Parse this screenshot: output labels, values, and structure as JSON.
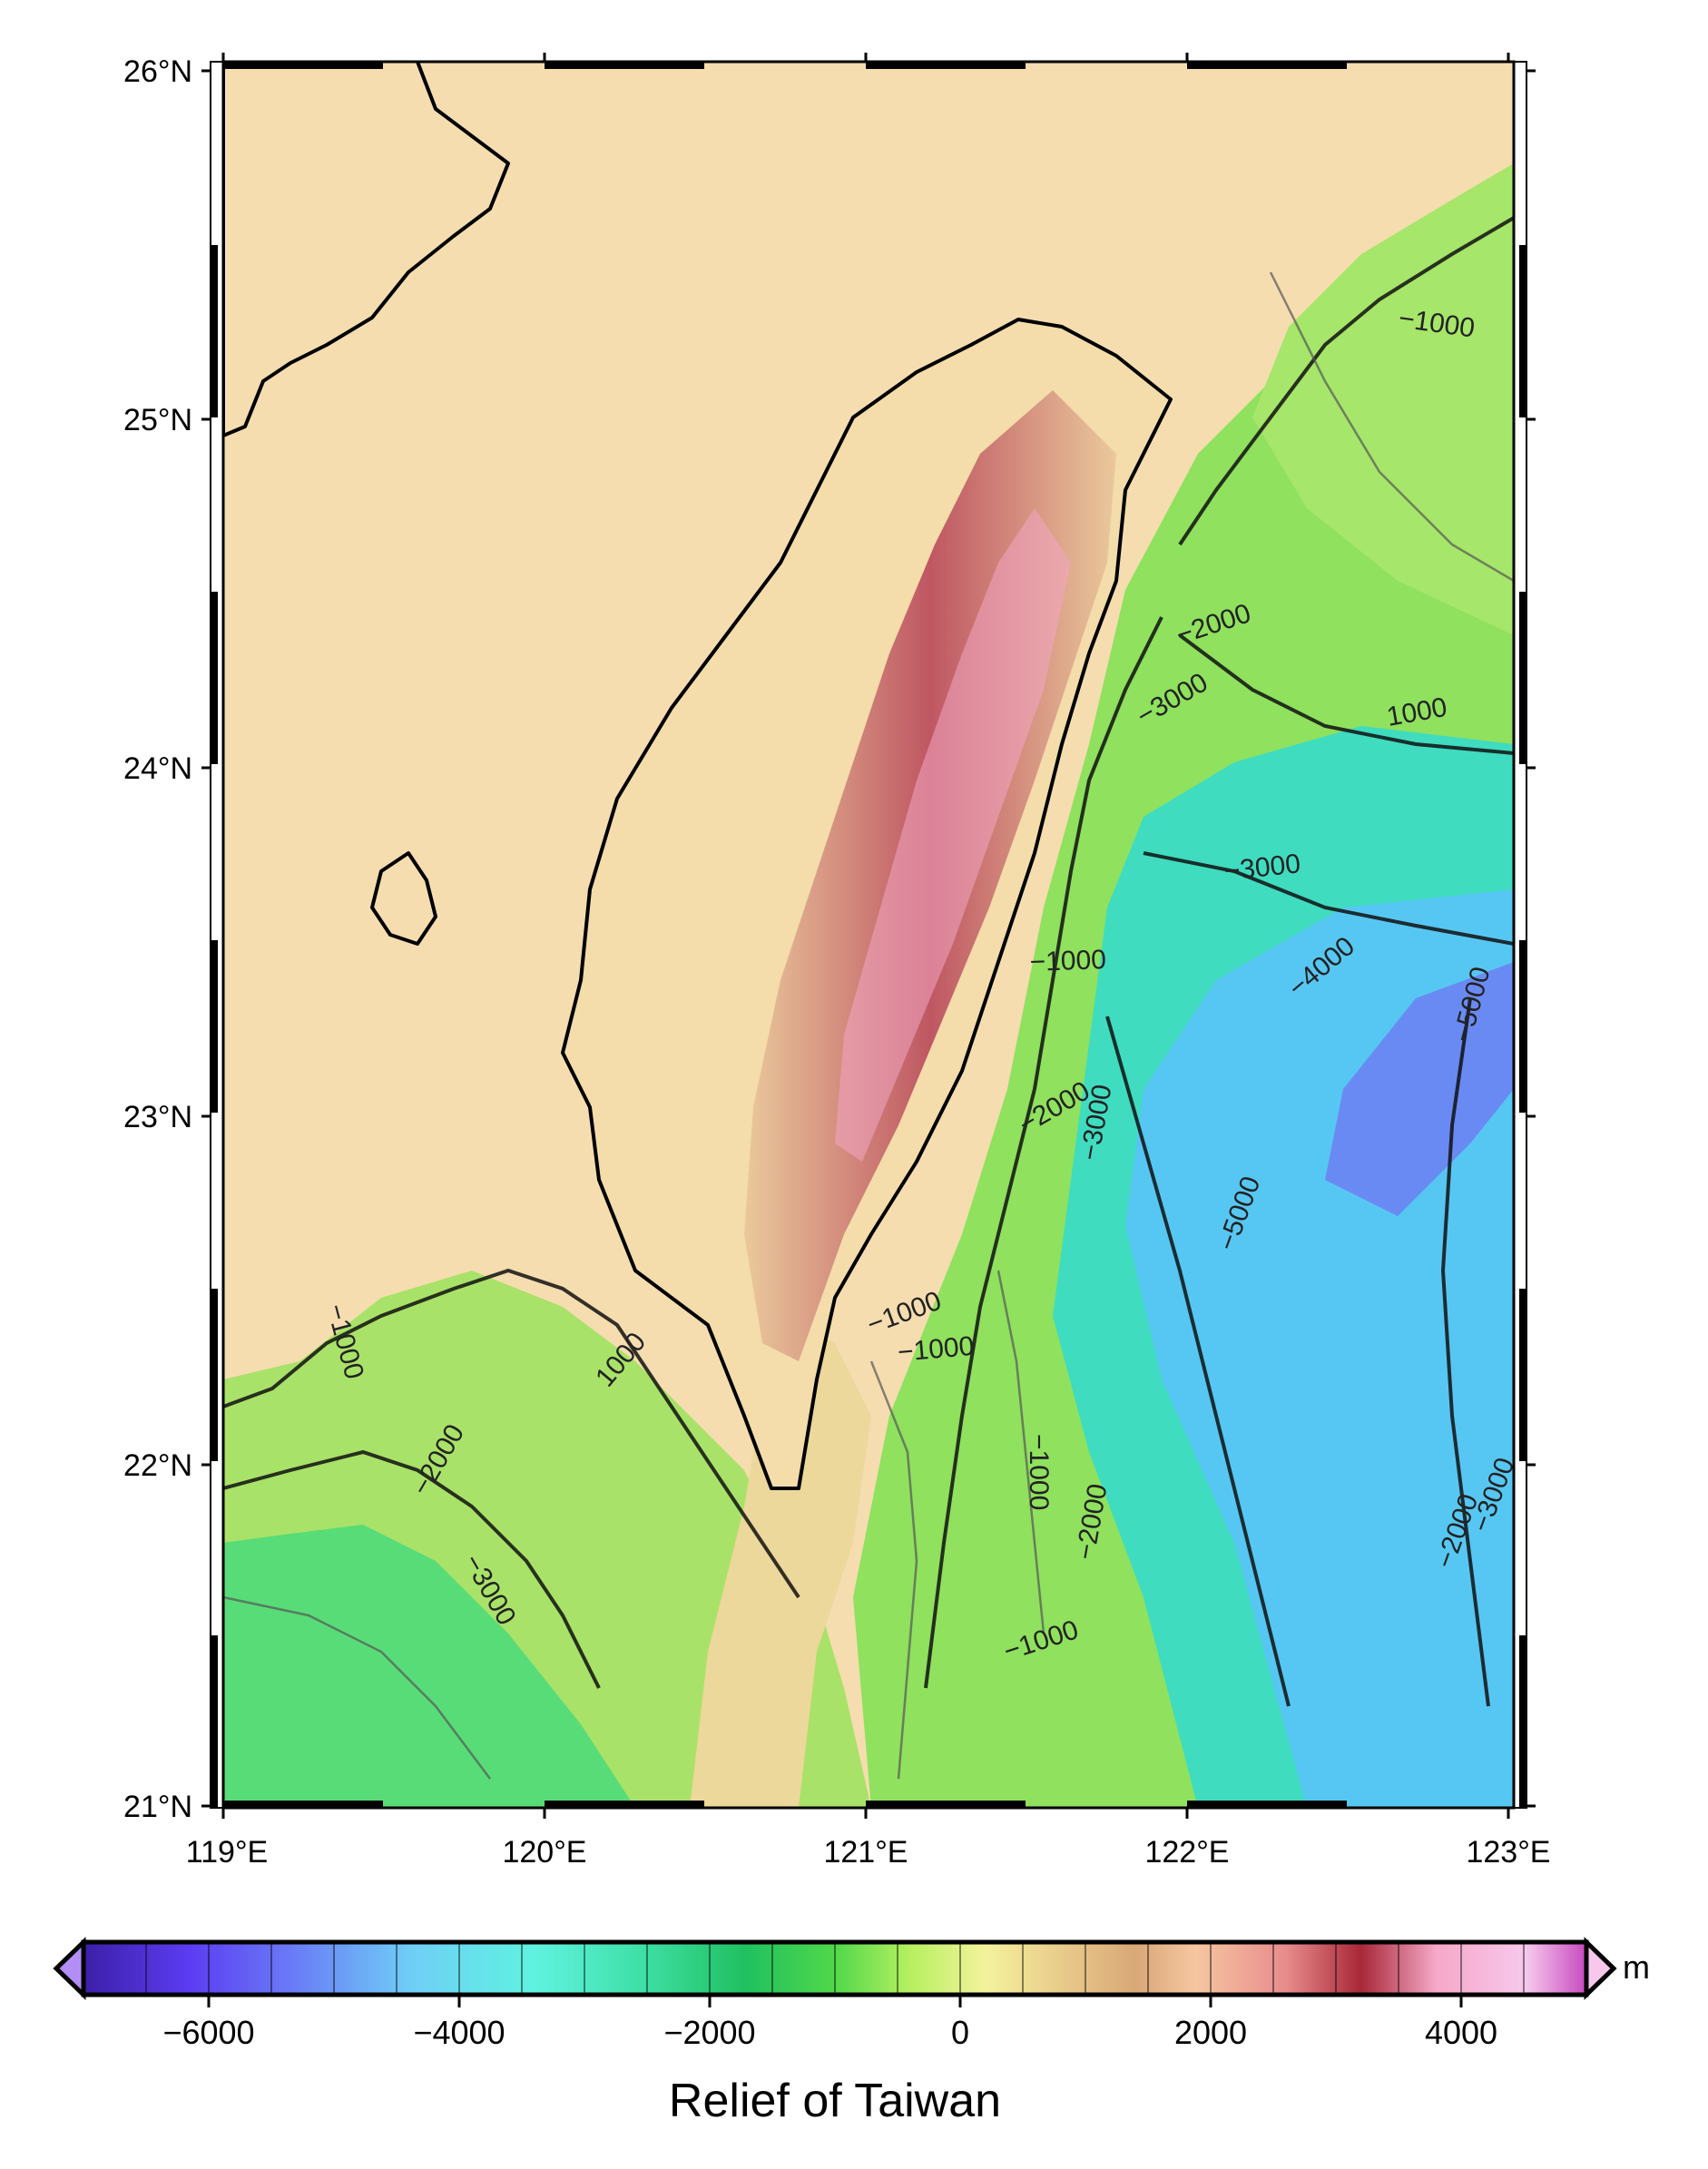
{
  "map": {
    "lat_labels": [
      "26°N",
      "25°N",
      "24°N",
      "23°N",
      "22°N",
      "21°N"
    ],
    "lon_labels": [
      "119°E",
      "120°E",
      "121°E",
      "122°E",
      "123°E"
    ],
    "contour_labels": [
      "−1000",
      "−2000",
      "−3000",
      "−3000",
      "1000",
      "−4000",
      "−5000",
      "−5000",
      "−1000",
      "−2000",
      "−3000",
      "−1000",
      "1000",
      "−1000",
      "−2000",
      "−3000",
      "−1000",
      "−1000",
      "−2000",
      "−1000",
      "−2000",
      "−3000"
    ],
    "colors": {
      "land_low": "#f6deb0",
      "shelf": "#f3d9a4",
      "shallow": "#e8e09a",
      "mid": "#9fe35c",
      "deep": "#3fe0b8",
      "deeper": "#52c8f2",
      "deepest": "#5b6cf2",
      "mountain": "#b9485a",
      "peak": "#f6b3d8"
    }
  },
  "colorbar": {
    "tick_labels": [
      "−6000",
      "−4000",
      "−2000",
      "0",
      "2000",
      "4000"
    ],
    "unit": "m",
    "title": "Relief of Taiwan"
  }
}
